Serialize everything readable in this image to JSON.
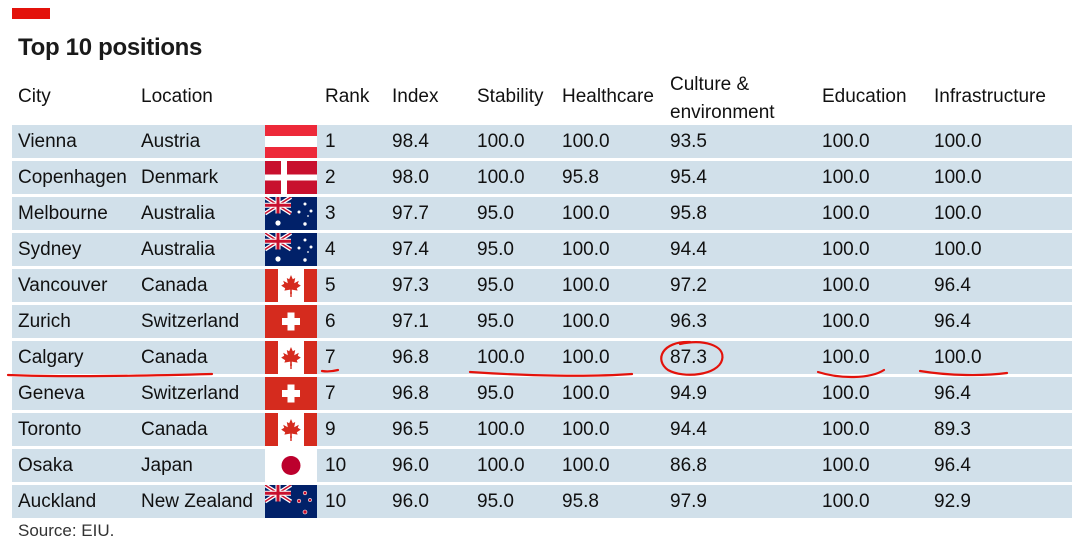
{
  "title": "Top 10 positions",
  "source": "Source: EIU.",
  "colors": {
    "accent": "#e3120b",
    "row_background": "#d1e0ea",
    "annotation": "#e3120b"
  },
  "headers": {
    "city": "City",
    "location": "Location",
    "rank": "Rank",
    "index": "Index",
    "stability": "Stability",
    "healthcare": "Healthcare",
    "culture_line1": "Culture &",
    "culture_line2": "environment",
    "education": "Education",
    "infrastructure": "Infrastructure"
  },
  "chart_data": {
    "type": "table",
    "title": "Top 10 positions",
    "columns": [
      "City",
      "Location",
      "Rank",
      "Index",
      "Stability",
      "Healthcare",
      "Culture & environment",
      "Education",
      "Infrastructure"
    ],
    "rows": [
      {
        "city": "Vienna",
        "location": "Austria",
        "flag": "austria-flag-icon",
        "rank": "1",
        "index": "98.4",
        "stability": "100.0",
        "healthcare": "100.0",
        "culture": "93.5",
        "education": "100.0",
        "infrastructure": "100.0"
      },
      {
        "city": "Copenhagen",
        "location": "Denmark",
        "flag": "denmark-flag-icon",
        "rank": "2",
        "index": "98.0",
        "stability": "100.0",
        "healthcare": "95.8",
        "culture": "95.4",
        "education": "100.0",
        "infrastructure": "100.0"
      },
      {
        "city": "Melbourne",
        "location": "Australia",
        "flag": "australia-flag-icon",
        "rank": "3",
        "index": "97.7",
        "stability": "95.0",
        "healthcare": "100.0",
        "culture": "95.8",
        "education": "100.0",
        "infrastructure": "100.0"
      },
      {
        "city": "Sydney",
        "location": "Australia",
        "flag": "australia-flag-icon",
        "rank": "4",
        "index": "97.4",
        "stability": "95.0",
        "healthcare": "100.0",
        "culture": "94.4",
        "education": "100.0",
        "infrastructure": "100.0"
      },
      {
        "city": "Vancouver",
        "location": "Canada",
        "flag": "canada-flag-icon",
        "rank": "5",
        "index": "97.3",
        "stability": "95.0",
        "healthcare": "100.0",
        "culture": "97.2",
        "education": "100.0",
        "infrastructure": "96.4"
      },
      {
        "city": "Zurich",
        "location": "Switzerland",
        "flag": "switzerland-flag-icon",
        "rank": "6",
        "index": "97.1",
        "stability": "95.0",
        "healthcare": "100.0",
        "culture": "96.3",
        "education": "100.0",
        "infrastructure": "96.4"
      },
      {
        "city": "Calgary",
        "location": "Canada",
        "flag": "canada-flag-icon",
        "rank": "7",
        "index": "96.8",
        "stability": "100.0",
        "healthcare": "100.0",
        "culture": "87.3",
        "education": "100.0",
        "infrastructure": "100.0"
      },
      {
        "city": "Geneva",
        "location": "Switzerland",
        "flag": "switzerland-flag-icon",
        "rank": "7",
        "index": "96.8",
        "stability": "95.0",
        "healthcare": "100.0",
        "culture": "94.9",
        "education": "100.0",
        "infrastructure": "96.4"
      },
      {
        "city": "Toronto",
        "location": "Canada",
        "flag": "canada-flag-icon",
        "rank": "9",
        "index": "96.5",
        "stability": "100.0",
        "healthcare": "100.0",
        "culture": "94.4",
        "education": "100.0",
        "infrastructure": "89.3"
      },
      {
        "city": "Osaka",
        "location": "Japan",
        "flag": "japan-flag-icon",
        "rank": "10",
        "index": "96.0",
        "stability": "100.0",
        "healthcare": "100.0",
        "culture": "86.8",
        "education": "100.0",
        "infrastructure": "96.4"
      },
      {
        "city": "Auckland",
        "location": "New Zealand",
        "flag": "new-zealand-flag-icon",
        "rank": "10",
        "index": "96.0",
        "stability": "95.0",
        "healthcare": "95.8",
        "culture": "97.9",
        "education": "100.0",
        "infrastructure": "92.9"
      }
    ]
  }
}
